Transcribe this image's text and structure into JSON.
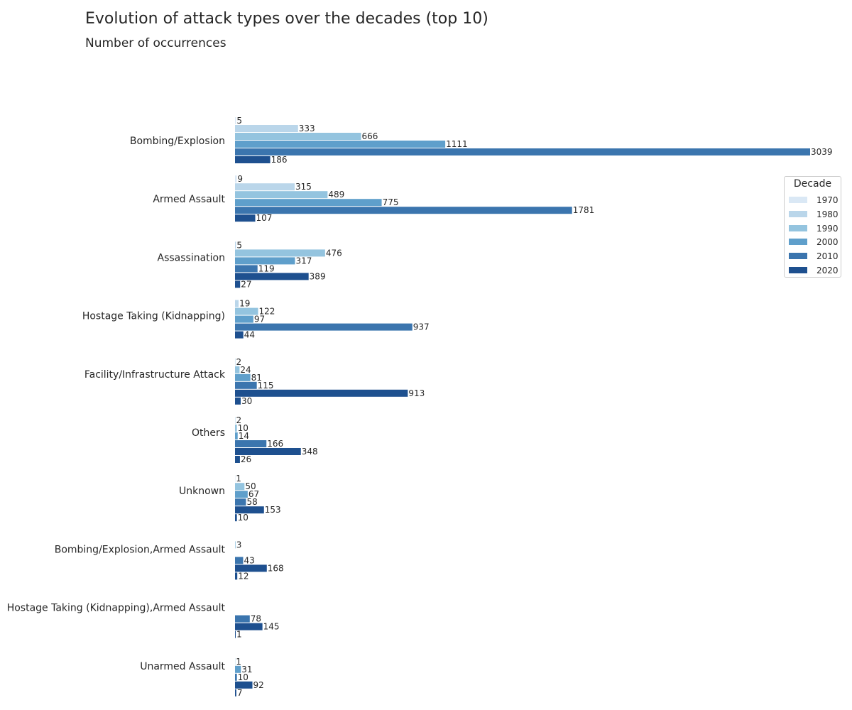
{
  "title": "Evolution of attack types over the decades (top 10)",
  "subtitle": "Number of occurrences",
  "legend": {
    "title": "Decade",
    "placement": "right"
  },
  "colors": [
    "#dae8f5",
    "#bad6ea",
    "#94c4df",
    "#5f9fcb",
    "#3b75ae",
    "#1e508f"
  ],
  "chart_data": {
    "type": "bar",
    "orientation": "horizontal",
    "title": "Evolution of attack types over the decades (top 10)",
    "subtitle": "Number of occurrences",
    "xlabel": "",
    "ylabel": "",
    "grid": false,
    "xlim": [
      0,
      3039
    ],
    "categories": [
      "Bombing/Explosion",
      "Armed Assault",
      "Assassination",
      "Hostage Taking (Kidnapping)",
      "Facility/Infrastructure Attack",
      "Others",
      "Unknown",
      "Bombing/Explosion,Armed Assault",
      "Hostage Taking (Kidnapping),Armed Assault",
      "Unarmed Assault"
    ],
    "series": [
      {
        "name": "1970",
        "values": [
          5,
          9,
          null,
          null,
          null,
          null,
          null,
          null,
          null,
          null
        ]
      },
      {
        "name": "1980",
        "values": [
          333,
          315,
          5,
          19,
          2,
          2,
          1,
          null,
          null,
          null
        ]
      },
      {
        "name": "1990",
        "values": [
          666,
          489,
          476,
          122,
          24,
          10,
          50,
          3,
          null,
          1
        ]
      },
      {
        "name": "2000",
        "values": [
          1111,
          775,
          317,
          97,
          81,
          14,
          67,
          null,
          null,
          31
        ]
      },
      {
        "name": "2010",
        "values": [
          3039,
          1781,
          119,
          937,
          115,
          166,
          58,
          43,
          78,
          10
        ]
      },
      {
        "name": "2020",
        "values": [
          186,
          107,
          389,
          44,
          913,
          348,
          153,
          168,
          145,
          92
        ]
      }
    ],
    "extra_labels": [
      {
        "category": "Assassination",
        "value": 27
      },
      {
        "category": "Facility/Infrastructure Attack",
        "value": 30
      },
      {
        "category": "Others",
        "value": 26
      },
      {
        "category": "Unknown",
        "value": 10
      },
      {
        "category": "Bombing/Explosion,Armed Assault",
        "value": 12
      },
      {
        "category": "Hostage Taking (Kidnapping),Armed Assault",
        "value": 1
      },
      {
        "category": "Unarmed Assault",
        "value": 7
      }
    ]
  }
}
